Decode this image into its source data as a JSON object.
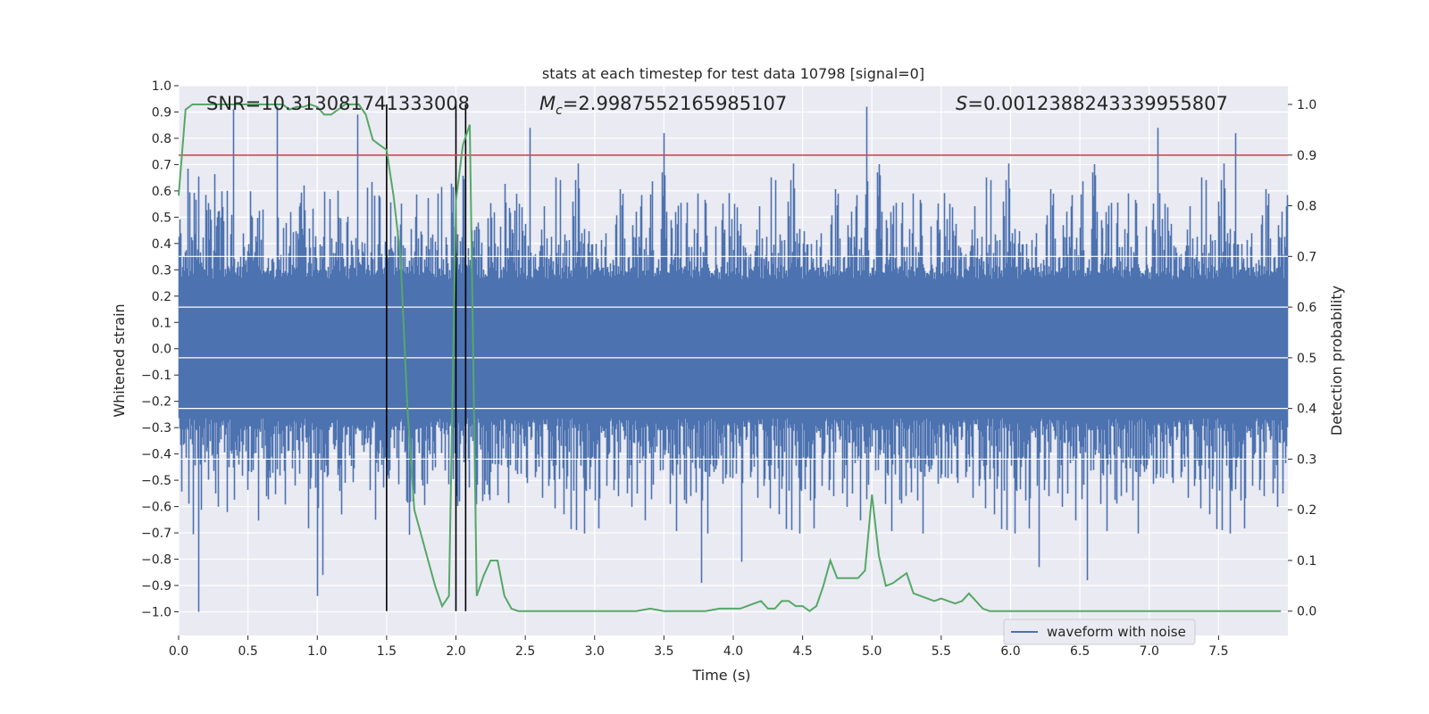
{
  "chart_data": {
    "type": "line",
    "title": "stats at each timestep for test data 10798 [signal=0]",
    "xlabel": "Time (s)",
    "ylabel": "Whitened strain",
    "ylabel_right": "Detection probability",
    "xlim": [
      0,
      8
    ],
    "ylim": [
      -1.09,
      1.0
    ],
    "ylim_right": [
      -0.048,
      1.037
    ],
    "x_ticks": [
      "0.0",
      "0.5",
      "1.0",
      "1.5",
      "2.0",
      "2.5",
      "3.0",
      "3.5",
      "4.0",
      "4.5",
      "5.0",
      "5.5",
      "6.0",
      "6.5",
      "7.0",
      "7.5"
    ],
    "y_ticks": [
      "1.0",
      "0.9",
      "0.8",
      "0.7",
      "0.6",
      "0.5",
      "0.4",
      "0.3",
      "0.2",
      "0.1",
      "0.0",
      "−0.1",
      "−0.2",
      "−0.3",
      "−0.4",
      "−0.5",
      "−0.6",
      "−0.7",
      "−0.8",
      "−0.9",
      "−1.0"
    ],
    "y_ticks_right": [
      "1.0",
      "0.9",
      "0.8",
      "0.7",
      "0.6",
      "0.5",
      "0.4",
      "0.3",
      "0.2",
      "0.1",
      "0.0"
    ],
    "annotations": {
      "snr": "SNR=10.313081741333008",
      "mc_symbol": "M",
      "mc_sub": "c",
      "mc_value": "=2.9987552165985107",
      "s_symbol": "S",
      "s_value": "=0.0012388243339955807"
    },
    "legend": {
      "label": "waveform with noise",
      "placement": "lower-right"
    },
    "grid": true,
    "waveform": {
      "name": "waveform with noise",
      "color": "#4c72b0",
      "sample_rate_hz": 2048,
      "envelope_typical": 0.33,
      "spikes": [
        {
          "t": 0.14,
          "y": -1.0
        },
        {
          "t": 0.39,
          "y": 0.91
        },
        {
          "t": 0.71,
          "y": 0.92
        },
        {
          "t": 1.0,
          "y": -0.94
        },
        {
          "t": 1.04,
          "y": -0.86
        },
        {
          "t": 1.29,
          "y": 0.89
        },
        {
          "t": 2.0,
          "y": -0.56
        },
        {
          "t": 2.53,
          "y": 0.84
        },
        {
          "t": 3.5,
          "y": 0.82
        },
        {
          "t": 3.77,
          "y": -0.89
        },
        {
          "t": 4.06,
          "y": -0.81
        },
        {
          "t": 4.96,
          "y": 0.92
        },
        {
          "t": 6.2,
          "y": -0.83
        },
        {
          "t": 6.55,
          "y": -0.88
        },
        {
          "t": 7.06,
          "y": 0.84
        },
        {
          "t": 7.62,
          "y": 0.82
        }
      ]
    },
    "detection_probability": {
      "color": "#55a868",
      "t": [
        0.0,
        0.05,
        0.1,
        0.15,
        0.2,
        0.25,
        0.3,
        0.35,
        0.4,
        0.45,
        0.5,
        0.55,
        0.6,
        0.65,
        0.7,
        0.75,
        0.8,
        0.85,
        0.9,
        0.95,
        1.0,
        1.05,
        1.1,
        1.15,
        1.2,
        1.25,
        1.3,
        1.35,
        1.4,
        1.45,
        1.5,
        1.55,
        1.6,
        1.65,
        1.7,
        1.75,
        1.8,
        1.85,
        1.9,
        1.95,
        2.0,
        2.05,
        2.1,
        2.15,
        2.2,
        2.25,
        2.3,
        2.35,
        2.4,
        2.45,
        2.5,
        2.6,
        2.7,
        2.8,
        2.9,
        3.0,
        3.1,
        3.2,
        3.3,
        3.4,
        3.5,
        3.6,
        3.7,
        3.8,
        3.9,
        4.0,
        4.05,
        4.1,
        4.15,
        4.2,
        4.25,
        4.3,
        4.35,
        4.4,
        4.45,
        4.5,
        4.55,
        4.6,
        4.65,
        4.7,
        4.75,
        4.8,
        4.85,
        4.9,
        4.95,
        5.0,
        5.05,
        5.1,
        5.15,
        5.2,
        5.25,
        5.3,
        5.35,
        5.4,
        5.45,
        5.5,
        5.55,
        5.6,
        5.65,
        5.7,
        5.75,
        5.8,
        5.85,
        5.9,
        6.0,
        6.1,
        6.2,
        6.3,
        6.4,
        6.5,
        6.6,
        6.7,
        6.8,
        6.9,
        7.0,
        7.1,
        7.2,
        7.3,
        7.4,
        7.5,
        7.6,
        7.7,
        7.8,
        7.9,
        7.95
      ],
      "p": [
        0.82,
        0.99,
        1.0,
        1.0,
        1.0,
        1.0,
        1.0,
        1.0,
        1.0,
        1.0,
        1.0,
        1.0,
        1.0,
        1.0,
        1.0,
        1.0,
        0.99,
        0.995,
        0.995,
        1.0,
        0.995,
        0.98,
        0.98,
        0.99,
        1.0,
        1.0,
        1.0,
        0.98,
        0.93,
        0.92,
        0.91,
        0.82,
        0.7,
        0.4,
        0.2,
        0.15,
        0.1,
        0.05,
        0.01,
        0.03,
        0.81,
        0.92,
        0.96,
        0.03,
        0.07,
        0.1,
        0.1,
        0.03,
        0.005,
        0.0,
        0.0,
        0.0,
        0.0,
        0.0,
        0.0,
        0.0,
        0.0,
        0.0,
        0.0,
        0.005,
        0.0,
        0.0,
        0.0,
        0.0,
        0.005,
        0.005,
        0.005,
        0.01,
        0.015,
        0.02,
        0.005,
        0.005,
        0.02,
        0.02,
        0.01,
        0.01,
        0.0,
        0.01,
        0.05,
        0.1,
        0.065,
        0.065,
        0.065,
        0.065,
        0.08,
        0.23,
        0.11,
        0.05,
        0.055,
        0.065,
        0.075,
        0.035,
        0.03,
        0.025,
        0.02,
        0.025,
        0.02,
        0.015,
        0.02,
        0.035,
        0.02,
        0.005,
        0.0,
        0.0,
        0.0,
        0.0,
        0.0,
        0.0,
        0.0,
        0.0,
        0.0,
        0.0,
        0.0,
        0.0,
        0.0,
        0.0,
        0.0,
        0.0,
        0.0,
        0.0,
        0.0,
        0.0,
        0.0,
        0.0,
        0.0
      ]
    },
    "threshold": {
      "y_right": 0.9,
      "color": "#c44e52"
    },
    "event_markers": {
      "t": [
        1.5,
        2.0,
        2.07
      ],
      "color": "#000000"
    }
  }
}
